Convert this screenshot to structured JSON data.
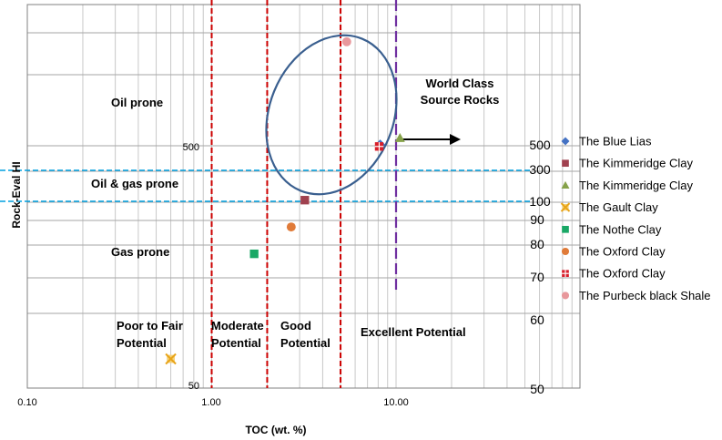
{
  "chart_data": {
    "type": "scatter",
    "xlabel": "TOC (wt. %)",
    "ylabel": "Rock-Eval HI",
    "x_scale": "log",
    "x_range": [
      0.1,
      100
    ],
    "x_ticks": [
      {
        "value": 0.1,
        "label": "0.10"
      },
      {
        "value": 1,
        "label": "1.00"
      },
      {
        "value": 10,
        "label": "10.00"
      }
    ],
    "inner_y_labels": [
      "500",
      "50"
    ],
    "right_axis_labels": [
      "500",
      "300",
      "100",
      "90",
      "80",
      "70",
      "60",
      "50"
    ],
    "grid": true,
    "legend_position": "right",
    "series": [
      {
        "name": "The Blue Lias",
        "color": "#4472c4",
        "marker": "diamond",
        "points": [
          {
            "x": 8.2,
            "y": 0.635
          }
        ]
      },
      {
        "name": "The Kimmeridge Clay",
        "color": "#a0414f",
        "marker": "square",
        "points": [
          {
            "x": 3.2,
            "y": 0.49
          }
        ]
      },
      {
        "name": "The Kimmeridge Clay",
        "color": "#86a24a",
        "marker": "triangle",
        "points": [
          {
            "x": 10.5,
            "y": 0.652
          }
        ]
      },
      {
        "name": "The Gault Clay",
        "color": "#e8a418",
        "marker": "x",
        "points": [
          {
            "x": 0.6,
            "y": 0.076
          }
        ]
      },
      {
        "name": "The Nothe Clay",
        "color": "#1aa866",
        "marker": "square",
        "points": [
          {
            "x": 1.7,
            "y": 0.35
          }
        ]
      },
      {
        "name": "The Oxford Clay",
        "color": "#e07b39",
        "marker": "circle",
        "points": [
          {
            "x": 2.7,
            "y": 0.42
          }
        ]
      },
      {
        "name": "The Oxford Clay",
        "color": "#d81e2a",
        "marker": "plus-square",
        "points": [
          {
            "x": 8.1,
            "y": 0.63
          }
        ]
      },
      {
        "name": "The Purbeck black Shale",
        "color": "#e8989c",
        "marker": "circle",
        "points": [
          {
            "x": 5.4,
            "y": 0.903
          }
        ]
      }
    ],
    "vertical_lines": [
      {
        "x": 1.0,
        "color": "#cc0000",
        "style": "dashed"
      },
      {
        "x": 2.0,
        "color": "#cc0000",
        "style": "dashed"
      },
      {
        "x": 5.0,
        "color": "#cc0000",
        "style": "dashed"
      },
      {
        "x": 10.0,
        "color": "#7030a0",
        "style": "dashed"
      }
    ],
    "horizontal_lines": [
      {
        "label_ref": "300",
        "color": "#00a0e0",
        "style": "dashed"
      },
      {
        "label_ref": "100",
        "color": "#00a0e0",
        "style": "dashed"
      }
    ],
    "ellipse_color": "#3a5f8f",
    "arrow_color": "#000000",
    "annotations": {
      "oil_prone": "Oil prone",
      "oil_gas_prone": "Oil & gas prone",
      "gas_prone": "Gas prone",
      "poor_line1": "Poor to Fair",
      "poor_line2": "Potential",
      "moderate_line1": "Moderate",
      "moderate_line2": "Potential",
      "good_line1": "Good",
      "good_line2": "Potential",
      "excellent": "Excellent Potential",
      "world_line1": "World Class",
      "world_line2": "Source Rocks"
    }
  }
}
